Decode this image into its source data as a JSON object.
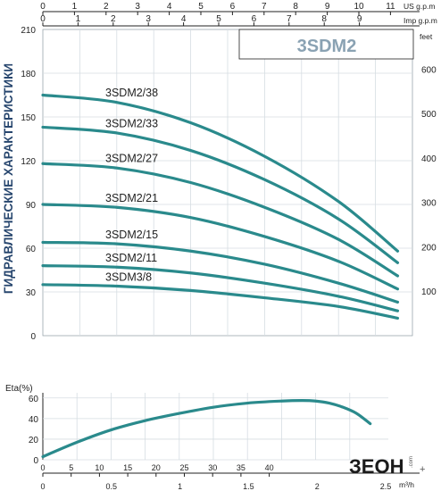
{
  "chart_data": [
    {
      "type": "line",
      "title": "3SDM2",
      "side_title": "ГИДРАВЛИЧЕСКИЕ ХАРАКТЕРИСТИКИ",
      "xlabel_top": "US g.p.m",
      "xlabel_top2": "Imp g.p.m",
      "ylabel_right": "feet",
      "x_us_gpm_ticks": [
        "0",
        "1",
        "2",
        "3",
        "4",
        "5",
        "6",
        "7",
        "8",
        "9",
        "10",
        "11"
      ],
      "x_imp_gpm_ticks": [
        "0",
        "1",
        "2",
        "3",
        "4",
        "5",
        "6",
        "7",
        "8",
        "9"
      ],
      "y_left_ticks": [
        "0",
        "30",
        "60",
        "90",
        "120",
        "150",
        "180",
        "210"
      ],
      "y_right_ticks": [
        "100",
        "200",
        "300",
        "400",
        "500",
        "600"
      ],
      "xlim_m3h": [
        0,
        2.5
      ],
      "ylim_m": [
        0,
        210
      ],
      "grid": true,
      "series": [
        {
          "name": "3SDM2/38",
          "x": [
            0,
            0.5,
            1.0,
            1.5,
            2.0,
            2.4
          ],
          "y": [
            165,
            160,
            146,
            123,
            92,
            58
          ],
          "label_x": 0.45
        },
        {
          "name": "3SDM2/33",
          "x": [
            0,
            0.5,
            1.0,
            1.5,
            2.0,
            2.4
          ],
          "y": [
            143,
            139,
            127,
            107,
            80,
            50
          ],
          "label_x": 0.45
        },
        {
          "name": "3SDM2/27",
          "x": [
            0,
            0.5,
            1.0,
            1.5,
            2.0,
            2.4
          ],
          "y": [
            118,
            115,
            105,
            88,
            66,
            41
          ],
          "label_x": 0.45
        },
        {
          "name": "3SDM2/21",
          "x": [
            0,
            0.5,
            1.0,
            1.5,
            2.0,
            2.4
          ],
          "y": [
            90,
            88,
            81,
            68,
            51,
            32
          ],
          "label_x": 0.45
        },
        {
          "name": "3SDM2/15",
          "x": [
            0,
            0.5,
            1.0,
            1.5,
            2.0,
            2.4
          ],
          "y": [
            64,
            63,
            58,
            49,
            36,
            23
          ],
          "label_x": 0.45
        },
        {
          "name": "3SDM2/11",
          "x": [
            0,
            0.5,
            1.0,
            1.5,
            2.0,
            2.4
          ],
          "y": [
            48,
            47,
            43,
            36,
            27,
            17
          ],
          "label_x": 0.45
        },
        {
          "name": "3SDM3/8",
          "x": [
            0,
            0.5,
            1.0,
            1.5,
            2.0,
            2.4
          ],
          "y": [
            35,
            34,
            31,
            26,
            20,
            12
          ],
          "label_x": 0.45
        }
      ]
    },
    {
      "type": "line",
      "ylabel": "Eta(%)",
      "xlabel_lmin_ticks": [
        "0",
        "5",
        "10",
        "15",
        "20",
        "25",
        "30",
        "35",
        "40"
      ],
      "x_m3h_ticks": [
        "0",
        "0.5",
        "1",
        "1.5",
        "2",
        "2.5"
      ],
      "x_unit": "m³/h",
      "y_ticks": [
        "0",
        "20",
        "40",
        "60"
      ],
      "xlim_m3h": [
        0,
        2.5
      ],
      "ylim": [
        0,
        65
      ],
      "series": [
        {
          "x": [
            0,
            0.25,
            0.5,
            0.75,
            1.0,
            1.25,
            1.5,
            1.75,
            1.9,
            2.0,
            2.1,
            2.2,
            2.3,
            2.4
          ],
          "y": [
            3,
            17,
            29,
            38,
            45,
            51,
            55,
            57,
            57.5,
            57,
            55,
            51,
            45,
            35
          ]
        }
      ]
    }
  ],
  "logo": {
    "text": "ЗЕОН",
    "suffix": ".com",
    "plus": "+"
  }
}
